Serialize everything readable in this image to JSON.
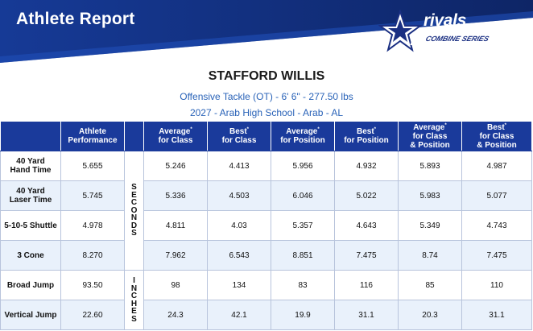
{
  "header": {
    "title": "Athlete Report"
  },
  "logo": {
    "brand": "rivals",
    "series": "COMBINE SERIES"
  },
  "athlete": {
    "name": "STAFFORD WILLIS",
    "position_line": "Offensive Tackle (OT) -  6' 6\" - 277.50 lbs",
    "school_line": "2027 - Arab High School - Arab - AL"
  },
  "table": {
    "columns": [
      "",
      "Athlete Performance",
      "",
      "Average for Class",
      "Best for Class",
      "Average for Position",
      "Best for Position",
      "Average for Class & Position",
      "Best for Class & Position"
    ],
    "column_lines": [
      [],
      [
        "Athlete",
        "Performance"
      ],
      [],
      [
        "Average",
        "for Class"
      ],
      [
        "Best",
        "for Class"
      ],
      [
        "Average",
        "for Position"
      ],
      [
        "Best",
        "for Position"
      ],
      [
        "Average",
        "for Class",
        "& Position"
      ],
      [
        "Best",
        "for Class",
        "& Position"
      ]
    ],
    "unit_seconds": [
      "S",
      "E",
      "C",
      "O",
      "N",
      "D",
      "S"
    ],
    "unit_inches": [
      "I",
      "N",
      "C",
      "H",
      "E",
      "S"
    ],
    "rows": [
      {
        "label": [
          "40 Yard",
          "Hand Time"
        ],
        "values": [
          "5.655",
          "5.246",
          "4.413",
          "5.956",
          "4.932",
          "5.893",
          "4.987"
        ]
      },
      {
        "label": [
          "40 Yard",
          "Laser Time"
        ],
        "values": [
          "5.745",
          "5.336",
          "4.503",
          "6.046",
          "5.022",
          "5.983",
          "5.077"
        ]
      },
      {
        "label": [
          "5-10-5 Shuttle"
        ],
        "values": [
          "4.978",
          "4.811",
          "4.03",
          "5.357",
          "4.643",
          "5.349",
          "4.743"
        ]
      },
      {
        "label": [
          "3 Cone"
        ],
        "values": [
          "8.270",
          "7.962",
          "6.543",
          "8.851",
          "7.475",
          "8.74",
          "7.475"
        ]
      },
      {
        "label": [
          "Broad Jump"
        ],
        "values": [
          "93.50",
          "98",
          "134",
          "83",
          "116",
          "85",
          "110"
        ]
      },
      {
        "label": [
          "Vertical Jump"
        ],
        "values": [
          "22.60",
          "24.3",
          "42.1",
          "19.9",
          "31.1",
          "20.3",
          "31.1"
        ]
      }
    ]
  },
  "colors": {
    "brand_blue": "#1a3a9b",
    "banner_dark": "#0e2566",
    "label_blue": "#2a63b8",
    "row_alt": "#e9f1fb"
  }
}
